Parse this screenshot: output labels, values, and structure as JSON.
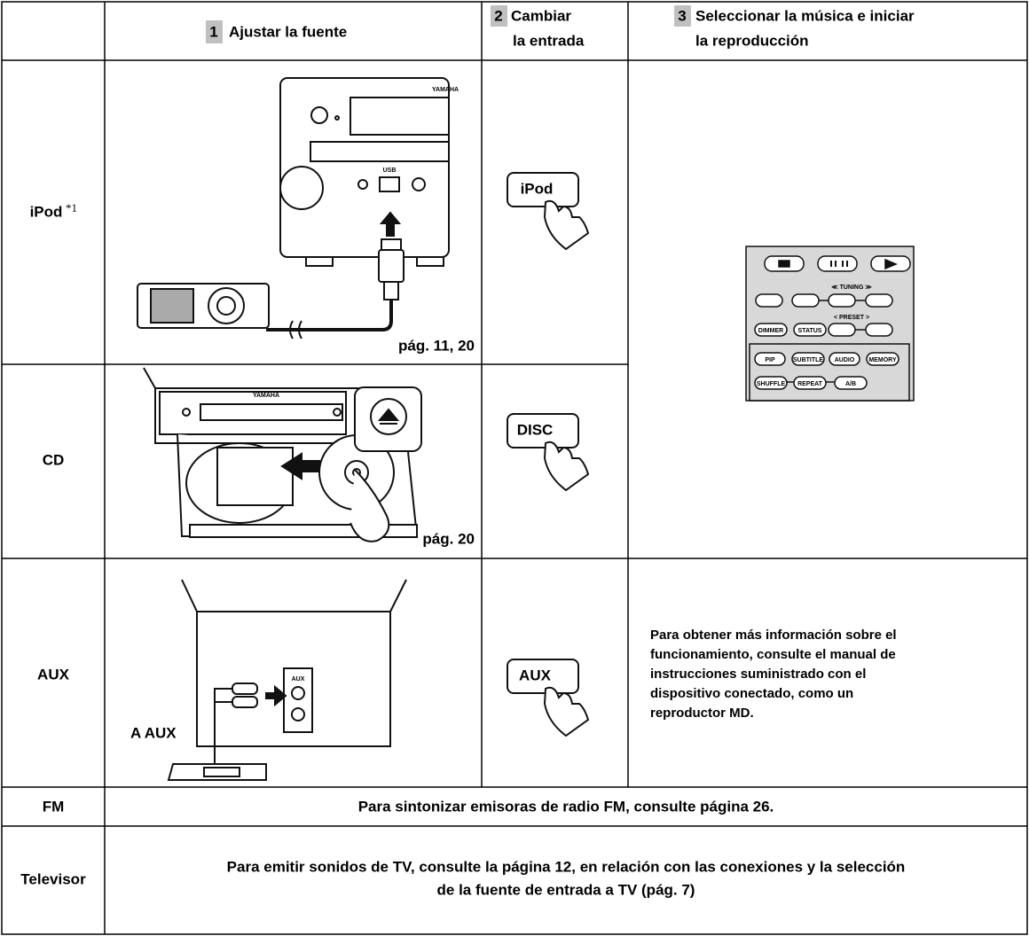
{
  "header": {
    "col1": {
      "number": "1",
      "label": "Ajustar la fuente"
    },
    "col2": {
      "number": "2",
      "lines": [
        "Cambiar",
        "la entrada"
      ]
    },
    "col3": {
      "number": "3",
      "lines": [
        "Seleccionar la música e iniciar",
        "la reproducción"
      ]
    }
  },
  "rows": [
    {
      "source": "iPod",
      "footnote": "*1",
      "page_ref": "pág. 11, 20",
      "button": "iPod",
      "device_labels": [
        "YAMAHA",
        "USB"
      ]
    },
    {
      "source": "CD",
      "page_ref": "pág. 20",
      "button": "DISC",
      "device_labels": [
        "YAMAHA"
      ]
    },
    {
      "source": "AUX",
      "connector_label": "A AUX",
      "button": "AUX",
      "note": [
        "Para obtener más información sobre el",
        "funcionamiento, consulte el manual de",
        "instrucciones suministrado con el",
        "dispositivo conectado, como un",
        "reproductor MD."
      ],
      "device_labels": [
        "AUX"
      ]
    },
    {
      "source": "FM",
      "text": "Para sintonizar emisoras de radio FM, consulte página 26."
    },
    {
      "source": "Televisor",
      "text": [
        "Para emitir sonidos de TV, consulte la página 12, en relación con las conexiones y la selección",
        "de la fuente de entrada a TV (pág. 7)"
      ]
    }
  ],
  "remote": {
    "tuning": "≪  TUNING  ≫",
    "preset": "<  PRESET  >",
    "buttons": [
      "DIMMER",
      "STATUS",
      "PIP",
      "SUBTITLE",
      "AUDIO",
      "MEMORY",
      "SHUFFLE",
      "REPEAT",
      "A/B"
    ]
  }
}
